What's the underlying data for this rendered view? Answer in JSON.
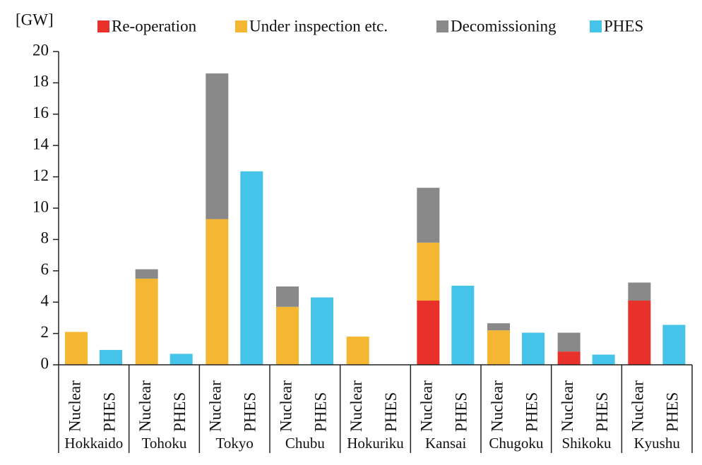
{
  "chart_data": {
    "type": "bar",
    "stacked": true,
    "ylabel": "[GW]",
    "groups": [
      "Hokkaido",
      "Tohoku",
      "Tokyo",
      "Chubu",
      "Hokuriku",
      "Kansai",
      "Chugoku",
      "Shikoku",
      "Kyushu"
    ],
    "categories": [
      "Nuclear",
      "PHES",
      "Nuclear",
      "PHES",
      "Nuclear",
      "PHES",
      "Nuclear",
      "PHES",
      "Nuclear",
      "PHES",
      "Nuclear",
      "PHES",
      "Nuclear",
      "PHES",
      "Nuclear",
      "PHES",
      "Nuclear",
      "PHES"
    ],
    "series": [
      {
        "name": "Re-operation",
        "color": "#e8312a",
        "values": [
          null,
          null,
          null,
          null,
          null,
          null,
          null,
          null,
          null,
          null,
          4.1,
          null,
          null,
          null,
          0.85,
          null,
          4.1,
          null
        ]
      },
      {
        "name": "Under inspection etc.",
        "color": "#f5b731",
        "values": [
          2.1,
          null,
          5.5,
          null,
          9.3,
          null,
          3.7,
          null,
          1.8,
          null,
          3.7,
          null,
          2.2,
          null,
          null,
          null,
          null,
          null
        ]
      },
      {
        "name": "Decomissioning",
        "color": "#898989",
        "values": [
          null,
          null,
          0.6,
          null,
          9.3,
          null,
          1.3,
          null,
          null,
          null,
          3.5,
          null,
          0.45,
          null,
          1.2,
          null,
          1.15,
          null
        ]
      },
      {
        "name": "PHES",
        "color": "#45c3e8",
        "values": [
          null,
          0.95,
          null,
          0.7,
          null,
          12.35,
          null,
          4.3,
          null,
          0,
          null,
          5.05,
          null,
          2.05,
          null,
          0.65,
          null,
          2.55
        ]
      }
    ],
    "ylim": [
      0,
      20
    ],
    "yticks": [
      0,
      2,
      4,
      6,
      8,
      10,
      12,
      14,
      16,
      18,
      20
    ]
  }
}
